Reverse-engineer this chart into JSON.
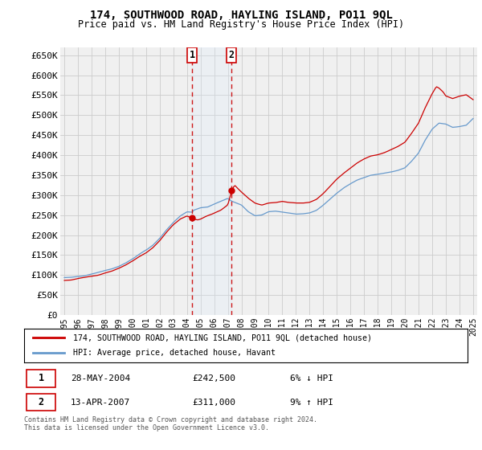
{
  "title": "174, SOUTHWOOD ROAD, HAYLING ISLAND, PO11 9QL",
  "subtitle": "Price paid vs. HM Land Registry's House Price Index (HPI)",
  "legend_label_red": "174, SOUTHWOOD ROAD, HAYLING ISLAND, PO11 9QL (detached house)",
  "legend_label_blue": "HPI: Average price, detached house, Havant",
  "footnote": "Contains HM Land Registry data © Crown copyright and database right 2024.\nThis data is licensed under the Open Government Licence v3.0.",
  "sale1_date": "28-MAY-2004",
  "sale1_price": "£242,500",
  "sale1_hpi": "6% ↓ HPI",
  "sale2_date": "13-APR-2007",
  "sale2_price": "£311,000",
  "sale2_hpi": "9% ↑ HPI",
  "ylim": [
    0,
    670000
  ],
  "yticks": [
    0,
    50000,
    100000,
    150000,
    200000,
    250000,
    300000,
    350000,
    400000,
    450000,
    500000,
    550000,
    600000,
    650000
  ],
  "ytick_labels": [
    "£0",
    "£50K",
    "£100K",
    "£150K",
    "£200K",
    "£250K",
    "£300K",
    "£350K",
    "£400K",
    "£450K",
    "£500K",
    "£550K",
    "£600K",
    "£650K"
  ],
  "sale1_x": 2004.38,
  "sale2_x": 2007.28,
  "sale1_y": 242500,
  "sale2_y": 311000,
  "bg_color": "#ffffff",
  "plot_bg_color": "#f0f0f0",
  "grid_color": "#cccccc",
  "red_color": "#cc0000",
  "blue_color": "#6699cc",
  "shade_color": "#ddeeff",
  "xtick_years": [
    1995,
    1996,
    1997,
    1998,
    1999,
    2000,
    2001,
    2002,
    2003,
    2004,
    2005,
    2006,
    2007,
    2008,
    2009,
    2010,
    2011,
    2012,
    2013,
    2014,
    2015,
    2016,
    2017,
    2018,
    2019,
    2020,
    2021,
    2022,
    2023,
    2024,
    2025
  ]
}
